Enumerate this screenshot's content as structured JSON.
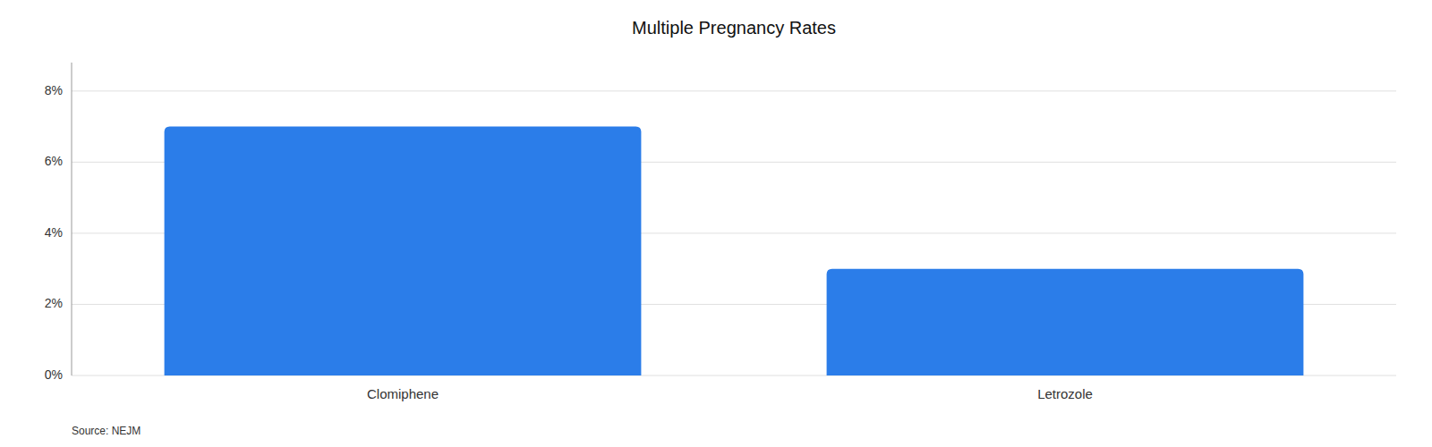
{
  "chart_data": {
    "type": "bar",
    "title": "Multiple Pregnancy Rates",
    "categories": [
      "Clomiphene",
      "Letrozole"
    ],
    "values": [
      0.07,
      0.03
    ],
    "color": "#2b7de9",
    "ylim": [
      0,
      0.088
    ],
    "yticks": [
      {
        "value": 0,
        "label": "0%"
      },
      {
        "value": 0.02,
        "label": "2%"
      },
      {
        "value": 0.04,
        "label": "4%"
      },
      {
        "value": 0.06,
        "label": "6%"
      },
      {
        "value": 0.08,
        "label": "8%"
      }
    ],
    "grid": true,
    "source": "Source: NEJM"
  }
}
